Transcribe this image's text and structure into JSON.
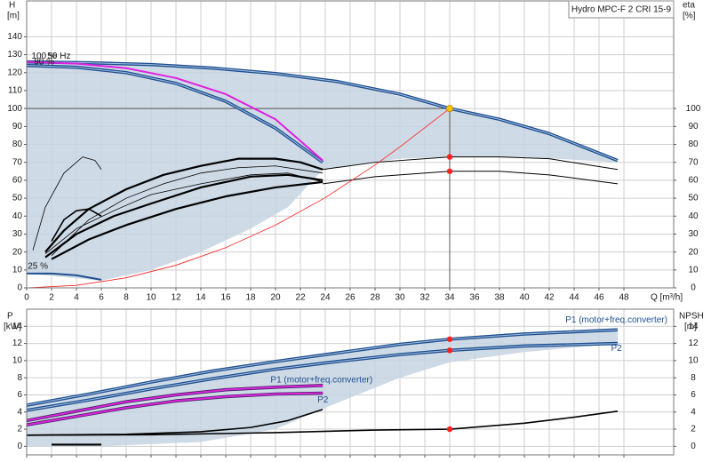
{
  "chart_data": [
    {
      "type": "line",
      "title": "Hydro MPC-F 2 CRI 15-9",
      "y_label": "H",
      "y_unit": "[m]",
      "y2_label": "eta",
      "y2_unit": "[%]",
      "x_label": "Q [m³/h]",
      "xlim": [
        0,
        52
      ],
      "xticks": [
        0,
        2,
        4,
        6,
        8,
        10,
        12,
        14,
        16,
        18,
        20,
        22,
        24,
        26,
        28,
        30,
        32,
        34,
        36,
        38,
        40,
        42,
        44,
        46,
        48
      ],
      "ylim": [
        0,
        160
      ],
      "yticks": [
        0,
        10,
        20,
        30,
        40,
        50,
        60,
        70,
        80,
        90,
        100,
        110,
        120,
        130,
        140
      ],
      "y2lim": [
        0,
        160
      ],
      "y2ticks": [
        0,
        10,
        20,
        30,
        40,
        50,
        60,
        70,
        80,
        90,
        100
      ],
      "grid": true,
      "show_xtick_labels": true,
      "region": {
        "color": "#c6d4e2",
        "x": [
          0,
          6,
          10,
          14,
          18,
          21,
          23.8,
          30,
          34,
          40,
          47.5,
          47.5,
          42,
          34,
          25,
          15,
          5,
          0
        ],
        "values": [
          8,
          4,
          10,
          20,
          33,
          45,
          66,
          72,
          73,
          73,
          70,
          71,
          86,
          100,
          115,
          122.5,
          125.5,
          126
        ]
      },
      "series": [
        {
          "color": "#1f4f8f",
          "double": true,
          "x": [
            0,
            5,
            10,
            15,
            20,
            25,
            30,
            34,
            38,
            42,
            47.5
          ],
          "values": [
            126,
            125.5,
            124.5,
            122.5,
            119.5,
            115,
            108,
            100,
            94,
            86,
            71
          ]
        },
        {
          "color": "#1f4f8f",
          "double": true,
          "x": [
            0,
            4,
            8,
            12,
            16,
            20,
            23.8
          ],
          "values": [
            124,
            123,
            120,
            114,
            104,
            89,
            70
          ]
        },
        {
          "color": "#e020e0",
          "double": false,
          "x": [
            0,
            4,
            8,
            12,
            16,
            20,
            23.8
          ],
          "values": [
            126,
            125,
            122.5,
            117,
            108,
            94,
            71
          ]
        },
        {
          "color": "#1f4f8f",
          "double": false,
          "x": [
            0,
            2,
            4,
            6
          ],
          "values": [
            8,
            8,
            7,
            4.5
          ]
        },
        {
          "color": "#000000",
          "width": 1,
          "axis": "y2",
          "x": [
            23.8,
            28,
            34,
            38,
            42,
            47.5
          ],
          "values": [
            66,
            70,
            73,
            73,
            72,
            66
          ]
        },
        {
          "color": "#000000",
          "width": 1,
          "axis": "y2",
          "x": [
            23.8,
            28,
            34,
            38,
            42,
            47.5
          ],
          "values": [
            58,
            62,
            65,
            65,
            63,
            58
          ]
        },
        {
          "color": "#000000",
          "width": 2.2,
          "axis": "y2",
          "x": [
            1.5,
            3,
            5,
            8,
            11,
            14,
            17,
            20,
            22,
            23.8
          ],
          "values": [
            20,
            32,
            44,
            55,
            63,
            68,
            72,
            72,
            70,
            66
          ]
        },
        {
          "color": "#000000",
          "width": 0.8,
          "axis": "y2",
          "x": [
            2,
            5,
            8,
            11,
            14,
            17,
            20,
            23.8
          ],
          "values": [
            18,
            38,
            50,
            58,
            64,
            67,
            68,
            64
          ]
        },
        {
          "color": "#000000",
          "width": 2.2,
          "axis": "y2",
          "x": [
            1.5,
            4,
            7,
            10,
            14,
            18,
            21,
            23.8
          ],
          "values": [
            17,
            30,
            40,
            47,
            56,
            62,
            63,
            60
          ]
        },
        {
          "color": "#000000",
          "width": 0.8,
          "axis": "y2",
          "x": [
            1.5,
            4,
            7,
            10,
            14,
            18,
            21,
            23.8
          ],
          "values": [
            19,
            33,
            43,
            52,
            58,
            63,
            64,
            59
          ]
        },
        {
          "color": "#000000",
          "width": 2.2,
          "axis": "y2",
          "x": [
            2,
            5,
            8,
            12,
            16,
            20,
            23.8
          ],
          "values": [
            16,
            27,
            35,
            44,
            51,
            56,
            59
          ]
        },
        {
          "color": "#000000",
          "width": 0.8,
          "axis": "y2",
          "x": [
            0.5,
            1.5,
            3,
            4.5,
            5.5,
            6
          ],
          "values": [
            21,
            45,
            64,
            73,
            71,
            66
          ]
        },
        {
          "color": "#000000",
          "width": 1.6,
          "axis": "y2",
          "x": [
            2,
            3,
            4,
            5,
            6
          ],
          "values": [
            26,
            38,
            43,
            44,
            40
          ]
        },
        {
          "color": "#ff2020",
          "width": 0.8,
          "x": [
            0,
            4,
            8,
            12,
            16,
            20,
            24,
            28,
            30,
            34
          ],
          "values": [
            0,
            1.4,
            5.6,
            12.6,
            22.4,
            35,
            50.3,
            68.5,
            78.6,
            100
          ]
        }
      ],
      "duty_point": {
        "x": 34,
        "y": 100,
        "color": "#f5c400"
      },
      "points": [
        {
          "x": 34,
          "y": 73,
          "axis": "y2",
          "color": "#ff2020"
        },
        {
          "x": 34,
          "y": 65,
          "axis": "y2",
          "color": "#ff2020"
        }
      ],
      "annotations": [
        {
          "text": "100 %",
          "x": 1.4,
          "y": 129
        },
        {
          "text": "50 Hz",
          "x": 2.6,
          "y": 129
        },
        {
          "text": "90 %",
          "x": 1.4,
          "y": 126
        },
        {
          "text": "25 %",
          "x": 0.9,
          "y": 12
        }
      ]
    },
    {
      "type": "line",
      "y_label": "P",
      "y_unit": "[kW]",
      "y2_label": "NPSH",
      "y2_unit": "[m]",
      "xlim": [
        0,
        52
      ],
      "xticks": [
        0,
        2,
        4,
        6,
        8,
        10,
        12,
        14,
        16,
        18,
        20,
        22,
        24,
        26,
        28,
        30,
        32,
        34,
        36,
        38,
        40,
        42,
        44,
        46,
        48
      ],
      "ylim": [
        -1,
        16
      ],
      "yticks": [
        0,
        2,
        4,
        6,
        8,
        10,
        12,
        14
      ],
      "y2lim": [
        -1,
        16
      ],
      "y2ticks": [
        0,
        2,
        4,
        6,
        8,
        10,
        12,
        14
      ],
      "grid": true,
      "show_xtick_labels": false,
      "region": {
        "color": "#c6d4e2",
        "x": [
          0,
          6,
          14,
          20,
          24,
          30,
          34,
          40,
          47.5,
          47.5,
          40,
          34,
          30,
          20,
          10,
          0
        ],
        "values": [
          0,
          0,
          0.5,
          2,
          4.5,
          8,
          9.8,
          11,
          12,
          13.6,
          13.1,
          12.5,
          11.9,
          9.9,
          7.5,
          4.8
        ]
      },
      "series": [
        {
          "color": "#1f4f8f",
          "double": true,
          "x": [
            0,
            5,
            10,
            15,
            20,
            25,
            30,
            34,
            40,
            47.5
          ],
          "values": [
            4.8,
            6.1,
            7.5,
            8.8,
            9.9,
            10.9,
            11.9,
            12.5,
            13.1,
            13.6
          ]
        },
        {
          "color": "#1f4f8f",
          "double": true,
          "x": [
            0,
            5,
            10,
            15,
            20,
            25,
            30,
            34,
            40,
            47.5
          ],
          "values": [
            4.2,
            5.4,
            6.7,
            7.9,
            9.0,
            9.9,
            10.7,
            11.2,
            11.7,
            12.0
          ]
        },
        {
          "color": "#e020e0",
          "double": true,
          "x": [
            0,
            4,
            8,
            12,
            16,
            20,
            23.8
          ],
          "values": [
            3.0,
            4.1,
            5.2,
            6.0,
            6.6,
            6.9,
            7.1
          ]
        },
        {
          "color": "#e020e0",
          "double": true,
          "x": [
            0,
            4,
            8,
            12,
            16,
            20,
            23.8
          ],
          "values": [
            2.5,
            3.5,
            4.5,
            5.3,
            5.8,
            6.1,
            6.2
          ]
        },
        {
          "color": "#000000",
          "width": 1.6,
          "axis": "y2",
          "x": [
            0,
            10,
            20,
            28,
            34,
            40,
            44,
            47.5
          ],
          "values": [
            1.3,
            1.35,
            1.6,
            1.9,
            2.0,
            2.7,
            3.4,
            4.1
          ]
        },
        {
          "color": "#000000",
          "width": 1.6,
          "axis": "y2",
          "x": [
            0,
            8,
            14,
            18,
            21,
            23.8
          ],
          "values": [
            1.3,
            1.4,
            1.7,
            2.2,
            3.0,
            4.3
          ]
        },
        {
          "color": "#000000",
          "width": 2.2,
          "axis": "y2",
          "x": [
            2,
            6
          ],
          "values": [
            0.2,
            0.2
          ]
        }
      ],
      "points": [
        {
          "x": 34,
          "y": 12.5,
          "color": "#ff2020"
        },
        {
          "x": 34,
          "y": 11.2,
          "color": "#ff2020"
        },
        {
          "x": 34,
          "y": 2.0,
          "axis": "y2",
          "color": "#ff2020"
        }
      ],
      "annotations": [
        {
          "text": "P1 (motor+freq.converter)",
          "x": 47.4,
          "y": 14.7
        },
        {
          "text": "P2",
          "x": 47.4,
          "y": 11.4
        },
        {
          "text": "P1 (motor+freq.converter)",
          "x": 23.7,
          "y": 7.7
        },
        {
          "text": "P2",
          "x": 23.8,
          "y": 5.4
        }
      ]
    }
  ]
}
